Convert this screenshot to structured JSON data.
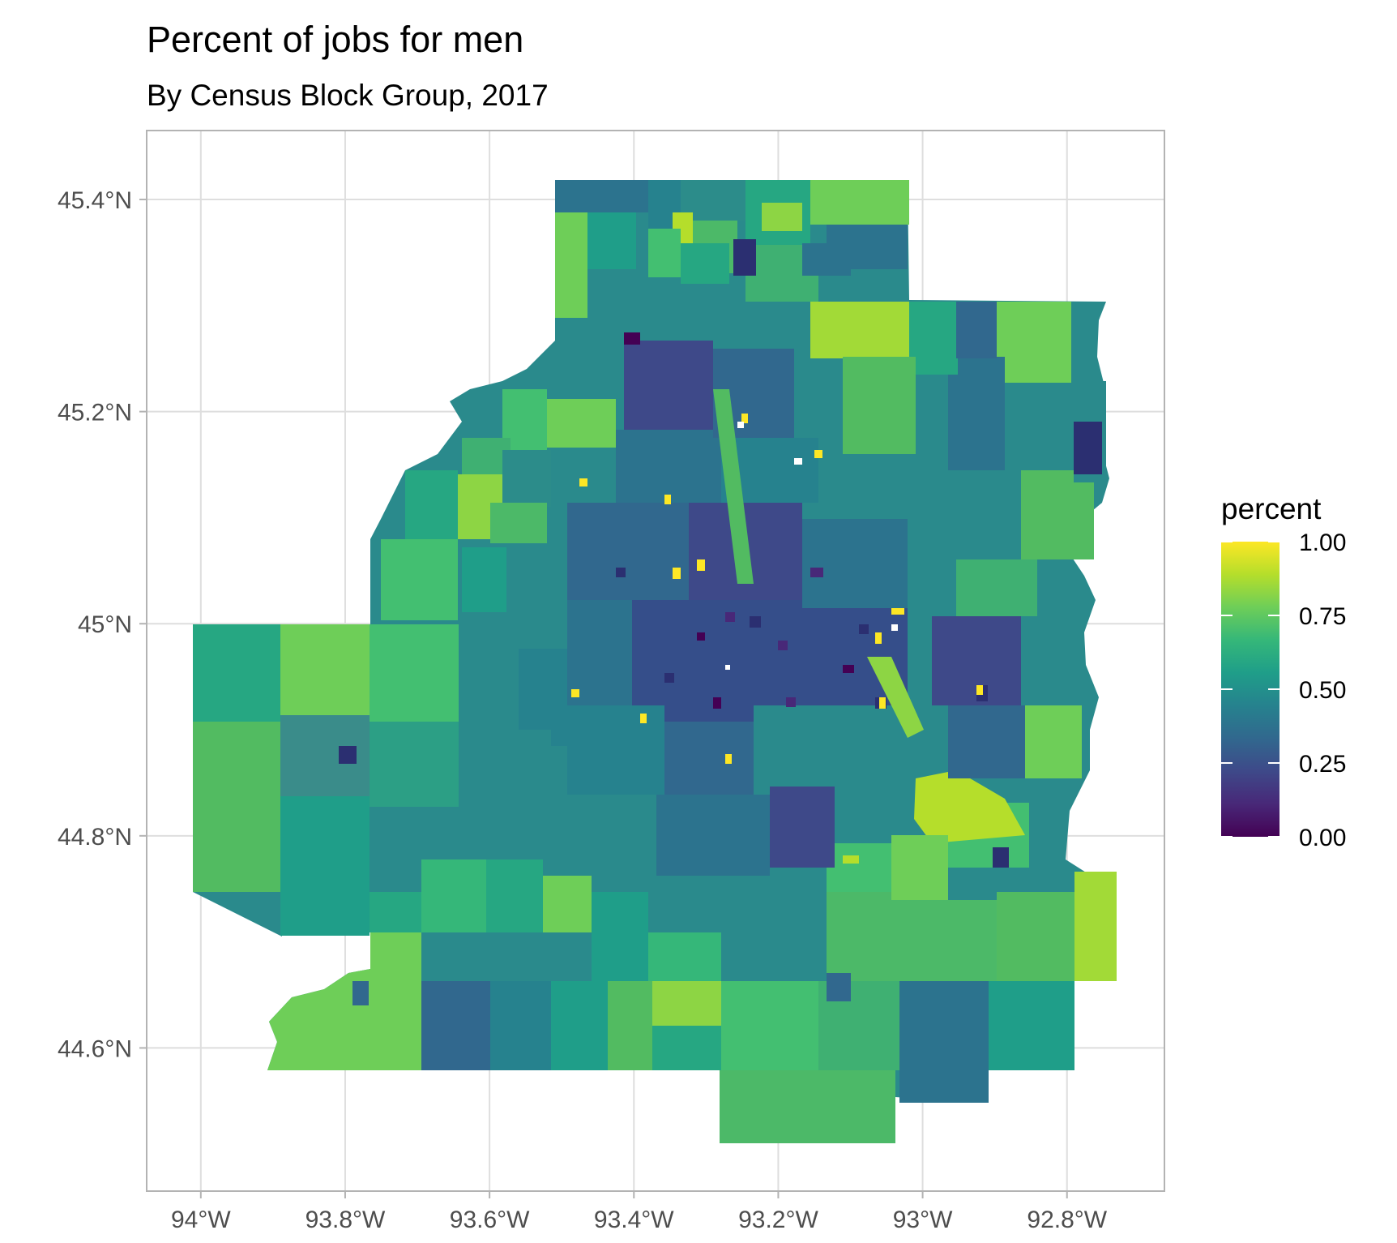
{
  "map": {
    "title": "Percent of jobs for men",
    "subtitle": "By Census Block Group, 2017",
    "x_ticks": [
      {
        "value": -94.0,
        "label": "94°W"
      },
      {
        "value": -93.8,
        "label": "93.8°W"
      },
      {
        "value": -93.6,
        "label": "93.6°W"
      },
      {
        "value": -93.4,
        "label": "93.4°W"
      },
      {
        "value": -93.2,
        "label": "93.2°W"
      },
      {
        "value": -93.0,
        "label": "93°W"
      },
      {
        "value": -92.8,
        "label": "92.8°W"
      }
    ],
    "y_ticks": [
      {
        "value": 45.4,
        "label": "45.4°N"
      },
      {
        "value": 45.2,
        "label": "45.2°N"
      },
      {
        "value": 45.0,
        "label": "45°N"
      },
      {
        "value": 44.8,
        "label": "44.8°N"
      },
      {
        "value": 44.6,
        "label": "44.6°N"
      }
    ],
    "xlim": [
      -94.075,
      -92.665
    ],
    "ylim": [
      44.465,
      45.465
    ],
    "grid": true,
    "legend": {
      "title": "percent",
      "position": "right",
      "colormap": "viridis",
      "range": [
        0,
        1
      ],
      "stops": [
        "#440154",
        "#482878",
        "#3e4989",
        "#31688e",
        "#26828e",
        "#1f9e89",
        "#35b779",
        "#6ece58",
        "#b5de2b",
        "#fde725"
      ],
      "breaks": [
        {
          "value": 0.0,
          "label": "0.00"
        },
        {
          "value": 0.25,
          "label": "0.25"
        },
        {
          "value": 0.5,
          "label": "0.50"
        },
        {
          "value": 0.75,
          "label": "0.75"
        },
        {
          "value": 1.0,
          "label": "1.00"
        }
      ]
    }
  },
  "chart_data": {
    "type": "heatmap",
    "title": "Percent of jobs for men",
    "subtitle": "By Census Block Group, 2017",
    "xlabel": "",
    "ylabel": "",
    "value_name": "percent",
    "value_range": [
      0,
      1
    ],
    "xlim": [
      -94.075,
      -92.665
    ],
    "ylim": [
      44.465,
      45.465
    ],
    "regions": [
      {
        "lon": -93.97,
        "lat": 44.92,
        "percent": 0.56
      },
      {
        "lon": -93.97,
        "lat": 44.8,
        "percent": 0.66
      },
      {
        "lon": -93.85,
        "lat": 44.93,
        "percent": 0.72
      },
      {
        "lon": -93.82,
        "lat": 44.83,
        "percent": 0.5
      },
      {
        "lon": -93.84,
        "lat": 44.7,
        "percent": 0.58
      },
      {
        "lon": -93.8,
        "lat": 44.6,
        "percent": 0.73
      },
      {
        "lon": -93.68,
        "lat": 45.08,
        "percent": 0.62
      },
      {
        "lon": -93.65,
        "lat": 44.62,
        "percent": 0.46
      },
      {
        "lon": -93.55,
        "lat": 44.6,
        "percent": 0.42
      },
      {
        "lon": -93.45,
        "lat": 45.32,
        "percent": 0.66
      },
      {
        "lon": -93.4,
        "lat": 45.41,
        "percent": 0.4
      },
      {
        "lon": -93.34,
        "lat": 45.36,
        "percent": 0.79
      },
      {
        "lon": -93.28,
        "lat": 45.33,
        "percent": 0.2
      },
      {
        "lon": -93.15,
        "lat": 45.4,
        "percent": 0.58
      },
      {
        "lon": -93.1,
        "lat": 45.28,
        "percent": 0.8
      },
      {
        "lon": -93.0,
        "lat": 45.24,
        "percent": 0.55
      },
      {
        "lon": -92.9,
        "lat": 45.26,
        "percent": 0.7
      },
      {
        "lon": -92.8,
        "lat": 45.1,
        "percent": 0.22
      },
      {
        "lon": -92.86,
        "lat": 45.05,
        "percent": 0.64
      },
      {
        "lon": -92.85,
        "lat": 44.92,
        "percent": 0.68
      },
      {
        "lon": -92.84,
        "lat": 44.77,
        "percent": 0.72
      },
      {
        "lon": -92.76,
        "lat": 44.68,
        "percent": 0.86
      },
      {
        "lon": -92.86,
        "lat": 44.6,
        "percent": 0.6
      },
      {
        "lon": -93.0,
        "lat": 44.6,
        "percent": 0.44
      },
      {
        "lon": -93.1,
        "lat": 44.8,
        "percent": 0.85
      },
      {
        "lon": -93.2,
        "lat": 44.52,
        "percent": 0.66
      },
      {
        "lon": -93.3,
        "lat": 44.62,
        "percent": 0.78
      },
      {
        "lon": -93.28,
        "lat": 44.97,
        "percent": 0.35
      },
      {
        "lon": -93.15,
        "lat": 44.95,
        "percent": 0.3
      },
      {
        "lon": -93.4,
        "lat": 44.95,
        "percent": 0.45
      },
      {
        "lon": -93.25,
        "lat": 45.1,
        "percent": 0.48
      }
    ]
  }
}
